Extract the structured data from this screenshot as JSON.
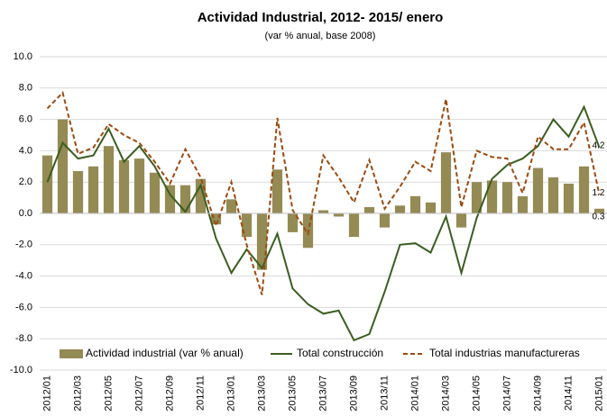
{
  "chart_data": {
    "type": "combo",
    "title": "Actividad Industrial, 2012- 2015/ enero",
    "subtitle": "(var % anual, base 2008)",
    "categories": [
      "2012/01",
      null,
      "2012/03",
      null,
      "2012/05",
      null,
      "2012/07",
      null,
      "2012/09",
      null,
      "2012/11",
      null,
      "2013/01",
      null,
      "2013/03",
      null,
      "2013/05",
      null,
      "2013/07",
      null,
      "2013/09",
      null,
      "2013/11",
      null,
      "2014/01",
      null,
      "2014/03",
      null,
      "2014/05",
      null,
      "2014/07",
      null,
      "2014/09",
      null,
      "2014/11",
      null,
      "2015/01"
    ],
    "series": [
      {
        "name": "Actividad industrial (var % anual)",
        "type": "bar",
        "color": "#948a54",
        "values": [
          3.7,
          6.0,
          2.7,
          3.0,
          4.3,
          3.4,
          3.5,
          2.6,
          1.8,
          1.8,
          2.2,
          -0.7,
          0.9,
          -1.5,
          -3.6,
          2.8,
          -1.2,
          -2.2,
          0.2,
          -0.2,
          -1.5,
          0.4,
          -0.9,
          0.5,
          1.1,
          0.7,
          3.9,
          -0.9,
          2.0,
          2.1,
          2.0,
          1.1,
          2.9,
          2.3,
          1.9,
          3.0,
          0.3
        ]
      },
      {
        "name": "Total construcción",
        "type": "line",
        "dash": false,
        "color": "#3b5e20",
        "values": [
          2.0,
          4.5,
          3.5,
          3.7,
          5.4,
          3.3,
          4.3,
          3.0,
          1.2,
          0.1,
          1.8,
          -1.6,
          -3.8,
          -2.3,
          -3.5,
          -1.3,
          -4.8,
          -5.8,
          -6.4,
          -6.2,
          -8.1,
          -7.7,
          -5.0,
          -2.0,
          -1.9,
          -2.5,
          -0.2,
          -3.8,
          -0.3,
          2.2,
          3.1,
          3.5,
          4.3,
          6.0,
          4.9,
          6.8,
          4.2
        ]
      },
      {
        "name": "Total industrias manufactureras",
        "type": "line",
        "dash": true,
        "color": "#9c4a10",
        "values": [
          6.7,
          7.7,
          3.8,
          4.2,
          5.7,
          5.0,
          4.5,
          3.3,
          1.9,
          4.1,
          2.3,
          -0.8,
          2.0,
          -2.0,
          -5.2,
          6.1,
          0.2,
          -1.3,
          3.7,
          2.3,
          0.7,
          3.4,
          0.3,
          1.7,
          3.3,
          2.7,
          7.3,
          0.4,
          4.0,
          3.6,
          3.5,
          1.3,
          4.9,
          4.1,
          4.1,
          5.8,
          1.2
        ]
      }
    ],
    "ylim": [
      -10,
      10
    ],
    "yticks": [
      {
        "value": -10,
        "label": "-10.0"
      },
      {
        "value": -8,
        "label": "-8.0"
      },
      {
        "value": -6,
        "label": "-6.0"
      },
      {
        "value": -4,
        "label": "-4.0"
      },
      {
        "value": -2,
        "label": "-2.0"
      },
      {
        "value": 0,
        "label": "0.0"
      },
      {
        "value": 2,
        "label": "2.0"
      },
      {
        "value": 4,
        "label": "4.0"
      },
      {
        "value": 6,
        "label": "6.0"
      },
      {
        "value": 8,
        "label": "8.0"
      },
      {
        "value": 10,
        "label": "10.0"
      }
    ],
    "grid": true,
    "legend": "bottom",
    "end_labels": true
  }
}
